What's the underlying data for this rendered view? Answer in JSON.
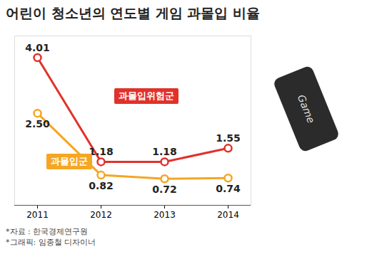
{
  "chart_data": {
    "type": "line",
    "title": "어린이 청소년의 연도별 게임 과몰입 비율",
    "categories": [
      "2011",
      "2012",
      "2013",
      "2014"
    ],
    "series": [
      {
        "name": "과몰입위험군",
        "color": "#e0322b",
        "values": [
          4.01,
          1.18,
          1.18,
          1.55
        ],
        "value_labels": [
          "4.01",
          "1.18",
          "1.18",
          "1.55"
        ],
        "marker": "circle",
        "line_style": "solid"
      },
      {
        "name": "과몰입군",
        "color": "#f5a623",
        "values": [
          2.5,
          0.82,
          0.72,
          0.74
        ],
        "value_labels": [
          "2.50",
          "0.82",
          "0.72",
          "0.74"
        ],
        "marker": "circle",
        "line_style": "solid"
      }
    ],
    "ylim": [
      0,
      4.6
    ],
    "yticks": [],
    "grid": false,
    "data_labels": true,
    "tick_labels": "x",
    "annotations": [
      "Game"
    ],
    "notes": [
      "*자료 : 한국경제연구원",
      "*그래픽: 임종철 디자이너"
    ]
  }
}
